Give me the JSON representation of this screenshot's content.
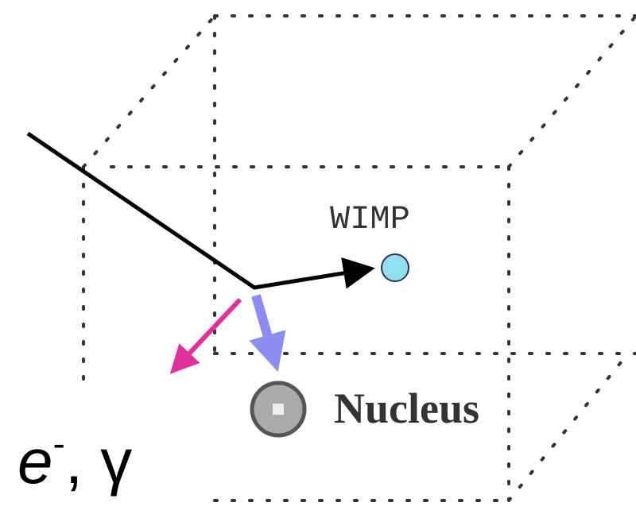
{
  "labels": {
    "wimp": "WIMP",
    "nucleus": "Nucleus",
    "electron": {
      "base": "e",
      "sup": "-",
      "rest": ", γ"
    }
  }
}
